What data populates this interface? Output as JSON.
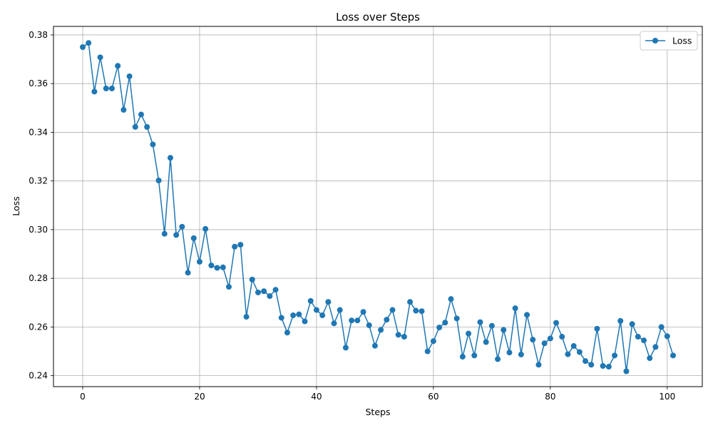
{
  "chart_data": {
    "type": "line",
    "title": "Loss over Steps",
    "xlabel": "Steps",
    "ylabel": "Loss",
    "xlim": [
      -5,
      106
    ],
    "ylim": [
      0.2355,
      0.3835
    ],
    "xticks": [
      0,
      20,
      40,
      60,
      80,
      100
    ],
    "yticks": [
      0.24,
      0.26,
      0.28,
      0.3,
      0.32,
      0.34,
      0.36,
      0.38
    ],
    "ytick_labels": [
      "0.24",
      "0.26",
      "0.28",
      "0.30",
      "0.32",
      "0.34",
      "0.36",
      "0.38"
    ],
    "grid": true,
    "legend_position": "top-right",
    "series": [
      {
        "name": "Loss",
        "color": "#1f77b4",
        "marker": "circle",
        "x": [
          0,
          1,
          2,
          3,
          4,
          5,
          6,
          7,
          8,
          9,
          10,
          11,
          12,
          13,
          14,
          15,
          16,
          17,
          18,
          19,
          20,
          21,
          22,
          23,
          24,
          25,
          26,
          27,
          28,
          29,
          30,
          31,
          32,
          33,
          34,
          35,
          36,
          37,
          38,
          39,
          40,
          41,
          42,
          43,
          44,
          45,
          46,
          47,
          48,
          49,
          50,
          51,
          52,
          53,
          54,
          55,
          56,
          57,
          58,
          59,
          60,
          61,
          62,
          63,
          64,
          65,
          66,
          67,
          68,
          69,
          70,
          71,
          72,
          73,
          74,
          75,
          76,
          77,
          78,
          79,
          80,
          81,
          82,
          83,
          84,
          85,
          86,
          87,
          88,
          89,
          90,
          91,
          92,
          93,
          94,
          95,
          96,
          97,
          98,
          99,
          100,
          101
        ],
        "y": [
          0.375,
          0.3767,
          0.3567,
          0.3708,
          0.358,
          0.358,
          0.3673,
          0.3492,
          0.363,
          0.3422,
          0.3473,
          0.3422,
          0.335,
          0.3202,
          0.2983,
          0.3295,
          0.2978,
          0.3012,
          0.2823,
          0.2965,
          0.2868,
          0.3003,
          0.2853,
          0.2843,
          0.2845,
          0.2765,
          0.293,
          0.2938,
          0.2642,
          0.2795,
          0.2742,
          0.2747,
          0.2727,
          0.2753,
          0.2638,
          0.2577,
          0.2648,
          0.2652,
          0.2623,
          0.2707,
          0.267,
          0.2648,
          0.2703,
          0.2615,
          0.267,
          0.2515,
          0.2627,
          0.2627,
          0.2662,
          0.2607,
          0.2523,
          0.2588,
          0.263,
          0.267,
          0.2568,
          0.256,
          0.2703,
          0.2667,
          0.2665,
          0.25,
          0.2542,
          0.2598,
          0.2618,
          0.2715,
          0.2635,
          0.2478,
          0.2573,
          0.2483,
          0.262,
          0.2538,
          0.2605,
          0.2468,
          0.2588,
          0.2495,
          0.2677,
          0.2487,
          0.265,
          0.2548,
          0.2445,
          0.2533,
          0.2553,
          0.2617,
          0.256,
          0.2488,
          0.2522,
          0.2497,
          0.246,
          0.2445,
          0.2593,
          0.244,
          0.2437,
          0.2483,
          0.2625,
          0.2418,
          0.2612,
          0.256,
          0.2545,
          0.2472,
          0.2518,
          0.26,
          0.2562,
          0.2483
        ]
      }
    ]
  }
}
